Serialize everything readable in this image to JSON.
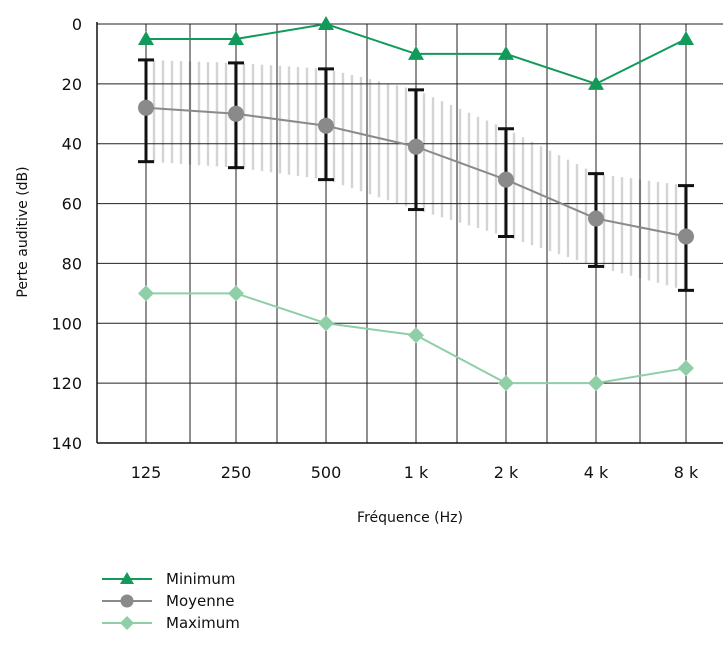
{
  "chart_data": {
    "type": "line",
    "xlabel": "Fréquence (Hz)",
    "ylabel": "Perte auditive (dB)",
    "categories": [
      "125",
      "250",
      "500",
      "1 k",
      "2 k",
      "4 k",
      "8 k"
    ],
    "yticks": [
      0,
      20,
      40,
      60,
      80,
      100,
      120,
      140
    ],
    "ylim": [
      0,
      140
    ],
    "y_inverted": true,
    "grid": true,
    "series": [
      {
        "name": "Minimum",
        "values": [
          5,
          5,
          0,
          10,
          10,
          20,
          5
        ],
        "color": "#129a5a",
        "marker": "triangle"
      },
      {
        "name": "Moyenne",
        "values": [
          28,
          30,
          34,
          41,
          52,
          65,
          71
        ],
        "color": "#8a8a8a",
        "marker": "circle",
        "error_low": [
          12,
          13,
          15,
          22,
          35,
          50,
          54
        ],
        "error_high": [
          46,
          48,
          52,
          62,
          71,
          81,
          89
        ]
      },
      {
        "name": "Maximum",
        "values": [
          90,
          90,
          100,
          104,
          120,
          120,
          115
        ],
        "color": "#8fcfa7",
        "marker": "diamond"
      }
    ],
    "band": {
      "low": [
        12,
        13,
        15,
        22,
        35,
        50,
        54
      ],
      "high": [
        46,
        48,
        52,
        62,
        71,
        81,
        89
      ],
      "color": "#d4d4d4"
    },
    "legend_position": "bottom-left"
  },
  "legend": [
    {
      "label": "Minimum",
      "color": "#129a5a",
      "marker": "triangle"
    },
    {
      "label": "Moyenne",
      "color": "#8a8a8a",
      "marker": "circle"
    },
    {
      "label": "Maximum",
      "color": "#8fcfa7",
      "marker": "diamond"
    }
  ]
}
